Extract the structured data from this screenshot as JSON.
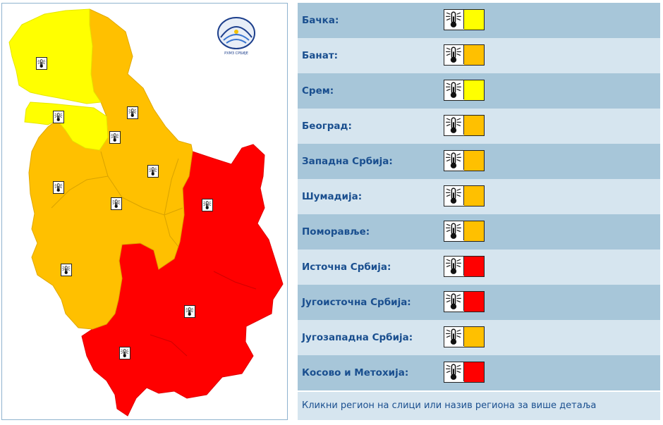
{
  "colors": {
    "yellow": "#ffff00",
    "orange": "#ffc000",
    "red": "#ff0000",
    "row_dark": "#a7c6d9",
    "row_light": "#d6e5ef",
    "label": "#1a4f8f"
  },
  "logo": {
    "text": "РХМЗ СРБИЈЕ"
  },
  "regions": [
    {
      "name": "Бачка:",
      "level": "yellow"
    },
    {
      "name": "Банат:",
      "level": "orange"
    },
    {
      "name": "Срем:",
      "level": "yellow"
    },
    {
      "name": "Београд:",
      "level": "orange"
    },
    {
      "name": "Западна Србија:",
      "level": "orange"
    },
    {
      "name": "Шумадија:",
      "level": "orange"
    },
    {
      "name": "Поморавље:",
      "level": "orange"
    },
    {
      "name": "Источна Србија:",
      "level": "red"
    },
    {
      "name": "Југоисточна Србија:",
      "level": "red"
    },
    {
      "name": "Југозападна Србија:",
      "level": "orange"
    },
    {
      "name": "Косово и Метохија:",
      "level": "red"
    }
  ],
  "warning_icon": "thermometer-heat-icon",
  "footer": "Кликни регион на слици или назив региона за више детаља"
}
